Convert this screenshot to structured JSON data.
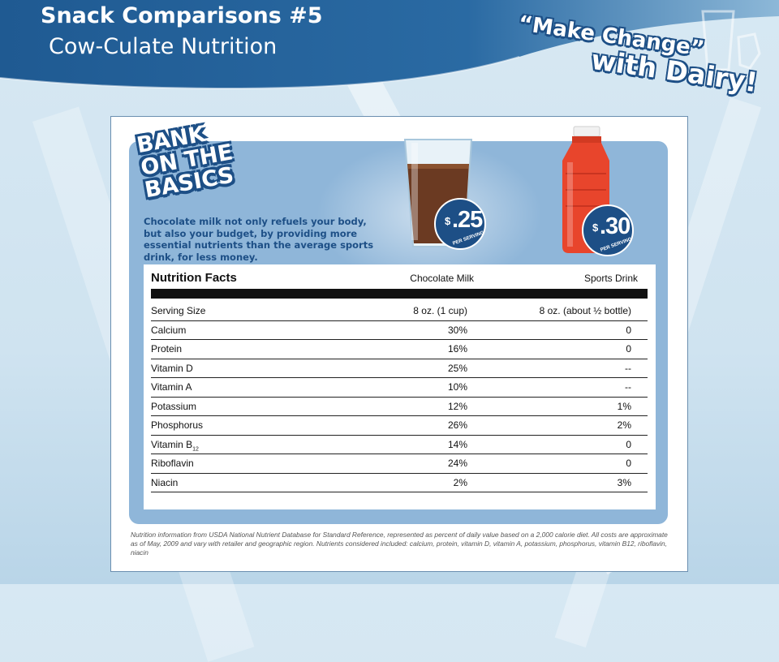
{
  "header": {
    "title": "Snack Comparisons #5",
    "subtitle": "Cow-Culate Nutrition"
  },
  "logo": {
    "line1": "“Make Change”",
    "line2": "with Dairy!"
  },
  "flyer": {
    "badge_lines": [
      "BANK",
      "ON THE",
      "BASICS"
    ],
    "tagline": "Chocolate milk not only refuels your body, but also your budget, by providing more essential nutrients than the average sports drink, for less money.",
    "products": [
      {
        "name": "chocolate milk",
        "price_symbol": "$",
        "price": ".25",
        "per_label": "PER SERVING"
      },
      {
        "name": "sports drink",
        "price_symbol": "$",
        "price": ".30",
        "per_label": "PER SERVING"
      }
    ],
    "nutrition": {
      "title": "Nutrition Facts",
      "columns": [
        "Chocolate Milk",
        "Sports Drink"
      ],
      "rows": [
        {
          "nutrient": "Serving Size",
          "milk": "8 oz. (1 cup)",
          "sports": "8 oz. (about ½ bottle)"
        },
        {
          "nutrient": "Calcium",
          "milk": "30%",
          "sports": "0"
        },
        {
          "nutrient": "Protein",
          "milk": "16%",
          "sports": "0"
        },
        {
          "nutrient": "Vitamin D",
          "milk": "25%",
          "sports": "--"
        },
        {
          "nutrient": "Vitamin A",
          "milk": "10%",
          "sports": "--"
        },
        {
          "nutrient": "Potassium",
          "milk": "12%",
          "sports": "1%"
        },
        {
          "nutrient": "Phosphorus",
          "milk": "26%",
          "sports": "2%"
        },
        {
          "nutrient": "Vitamin B",
          "nutrient_sub": "12",
          "milk": "14%",
          "sports": "0"
        },
        {
          "nutrient": "Riboflavin",
          "milk": "24%",
          "sports": "0"
        },
        {
          "nutrient": "Niacin",
          "milk": "2%",
          "sports": "3%"
        }
      ]
    },
    "footnote": "Nutrition information from USDA National Nutrient Database for Standard Reference, represented as percent of daily value based on a 2,000 calorie diet. All costs are approximate as of May, 2009 and vary with retailer and geographic region. Nutrients considered included: calcium, protein, vitamin D, vitamin A, potassium, phosphorus, vitamin B12, riboflavin, niacin"
  },
  "colors": {
    "brand_blue": "#1d4f86",
    "panel_blue": "#8fb6d9",
    "milk_brown": "#6b3a22",
    "bottle_red": "#e8452c"
  }
}
